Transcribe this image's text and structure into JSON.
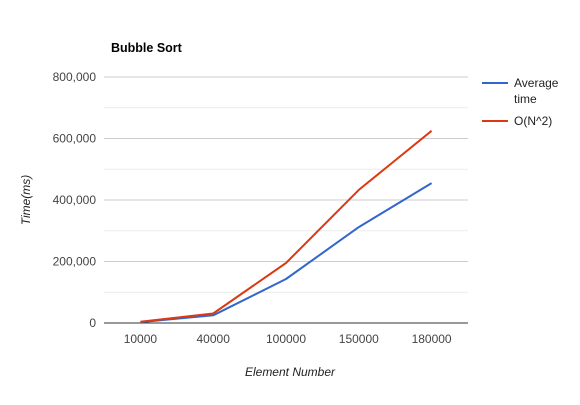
{
  "chart_data": {
    "type": "line",
    "title": "Bubble Sort",
    "xlabel": "Element Number",
    "ylabel": "Time(ms)",
    "categories": [
      "10000",
      "40000",
      "100000",
      "150000",
      "180000"
    ],
    "y_ticks": [
      "0",
      "200,000",
      "400,000",
      "600,000",
      "800,000"
    ],
    "ylim": [
      0,
      800000
    ],
    "grid": true,
    "legend_position": "right",
    "series": [
      {
        "name_lines": [
          "Average",
          "time"
        ],
        "color": "#3366cc",
        "values": [
          3000,
          25000,
          143000,
          312000,
          455000
        ]
      },
      {
        "name_lines": [
          "O(N^2)"
        ],
        "color": "#dc3912",
        "values": [
          4000,
          31000,
          195000,
          433000,
          625000
        ]
      }
    ]
  }
}
